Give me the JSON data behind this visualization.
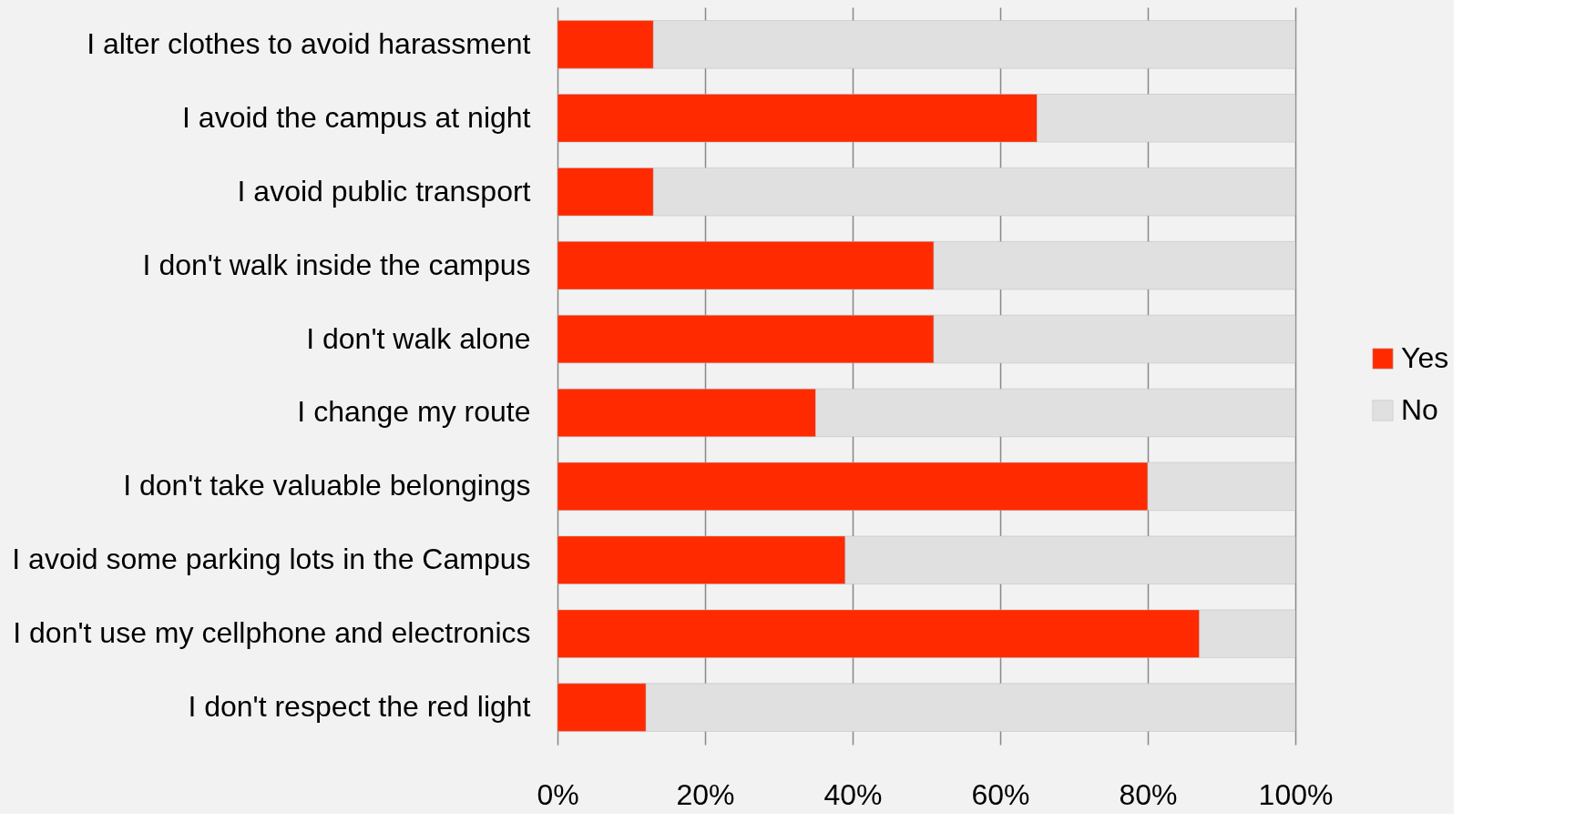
{
  "chart_data": {
    "type": "bar",
    "orientation": "horizontal",
    "stacked": true,
    "categories": [
      "I alter clothes to avoid harassment",
      "I avoid the campus at night",
      "I avoid public transport",
      "I don't walk inside the campus",
      "I don't walk alone",
      "I change my route",
      "I don't take valuable belongings",
      "I avoid some parking lots in the Campus",
      "I don't use my cellphone and electronics",
      "I don't respect the red light"
    ],
    "series": [
      {
        "name": "Yes",
        "color": "#ff2a00",
        "values": [
          13,
          65,
          13,
          51,
          51,
          35,
          80,
          39,
          87,
          12
        ]
      },
      {
        "name": "No",
        "color": "#e0e0e0",
        "values": [
          87,
          35,
          87,
          49,
          49,
          65,
          20,
          61,
          13,
          88
        ]
      }
    ],
    "xlim": [
      0,
      100
    ],
    "xticks": [
      {
        "value": 0,
        "label": "0%"
      },
      {
        "value": 20,
        "label": "20%"
      },
      {
        "value": 40,
        "label": "40%"
      },
      {
        "value": 60,
        "label": "60%"
      },
      {
        "value": 80,
        "label": "80%"
      },
      {
        "value": 100,
        "label": "100%"
      }
    ],
    "grid": "x",
    "legend": "right"
  }
}
